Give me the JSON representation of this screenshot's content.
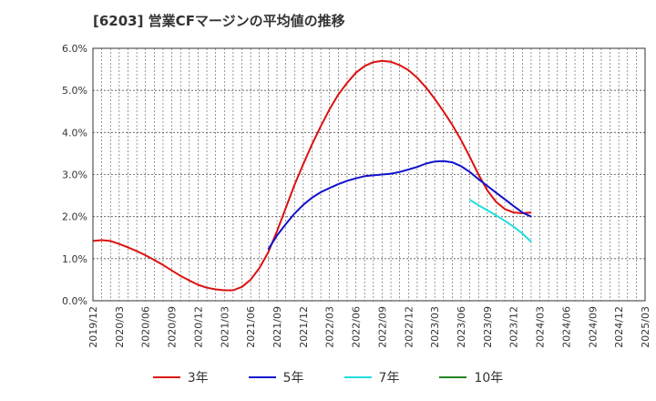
{
  "title": "[6203]  営業CFマージンの平均値の推移",
  "chart_data": {
    "type": "line",
    "title": "[6203]  営業CFマージンの平均値の推移",
    "xlabel": "",
    "ylabel": "",
    "ylim": [
      0,
      6
    ],
    "y_ticks": [
      "0.0%",
      "1.0%",
      "2.0%",
      "3.0%",
      "4.0%",
      "5.0%",
      "6.0%"
    ],
    "x_ticks": [
      "2019/12",
      "2020/03",
      "2020/06",
      "2020/09",
      "2020/12",
      "2021/03",
      "2021/06",
      "2021/09",
      "2021/12",
      "2022/03",
      "2022/06",
      "2022/09",
      "2022/12",
      "2023/03",
      "2023/06",
      "2023/09",
      "2023/12",
      "2024/03",
      "2024/06",
      "2024/09",
      "2024/12",
      "2025/03"
    ],
    "x_start": "2019/12",
    "grid": true,
    "legend_position": "bottom",
    "series": [
      {
        "name": "3年",
        "color": "#dd1111",
        "points": [
          [
            "2019/12",
            1.42
          ],
          [
            "2020/01",
            1.44
          ],
          [
            "2020/02",
            1.42
          ],
          [
            "2020/03",
            1.35
          ],
          [
            "2020/04",
            1.27
          ],
          [
            "2020/05",
            1.18
          ],
          [
            "2020/06",
            1.08
          ],
          [
            "2020/07",
            0.97
          ],
          [
            "2020/08",
            0.85
          ],
          [
            "2020/09",
            0.72
          ],
          [
            "2020/10",
            0.59
          ],
          [
            "2020/11",
            0.48
          ],
          [
            "2020/12",
            0.38
          ],
          [
            "2021/01",
            0.31
          ],
          [
            "2021/02",
            0.27
          ],
          [
            "2021/03",
            0.25
          ],
          [
            "2021/04",
            0.25
          ],
          [
            "2021/05",
            0.33
          ],
          [
            "2021/06",
            0.5
          ],
          [
            "2021/07",
            0.78
          ],
          [
            "2021/08",
            1.15
          ],
          [
            "2021/09",
            1.65
          ],
          [
            "2021/10",
            2.2
          ],
          [
            "2021/11",
            2.75
          ],
          [
            "2021/12",
            3.25
          ],
          [
            "2022/01",
            3.72
          ],
          [
            "2022/02",
            4.15
          ],
          [
            "2022/03",
            4.55
          ],
          [
            "2022/04",
            4.9
          ],
          [
            "2022/05",
            5.18
          ],
          [
            "2022/06",
            5.42
          ],
          [
            "2022/07",
            5.58
          ],
          [
            "2022/08",
            5.67
          ],
          [
            "2022/09",
            5.7
          ],
          [
            "2022/10",
            5.68
          ],
          [
            "2022/11",
            5.6
          ],
          [
            "2022/12",
            5.48
          ],
          [
            "2023/01",
            5.3
          ],
          [
            "2023/02",
            5.07
          ],
          [
            "2023/03",
            4.8
          ],
          [
            "2023/04",
            4.5
          ],
          [
            "2023/05",
            4.18
          ],
          [
            "2023/06",
            3.82
          ],
          [
            "2023/07",
            3.42
          ],
          [
            "2023/08",
            3.0
          ],
          [
            "2023/09",
            2.62
          ],
          [
            "2023/10",
            2.35
          ],
          [
            "2023/11",
            2.18
          ],
          [
            "2023/12",
            2.1
          ],
          [
            "2024/01",
            2.08
          ],
          [
            "2024/02",
            2.1
          ]
        ]
      },
      {
        "name": "5年",
        "color": "#1111cc",
        "points": [
          [
            "2021/08",
            1.22
          ],
          [
            "2021/09",
            1.55
          ],
          [
            "2021/10",
            1.82
          ],
          [
            "2021/11",
            2.07
          ],
          [
            "2021/12",
            2.28
          ],
          [
            "2022/01",
            2.45
          ],
          [
            "2022/02",
            2.58
          ],
          [
            "2022/03",
            2.68
          ],
          [
            "2022/04",
            2.77
          ],
          [
            "2022/05",
            2.85
          ],
          [
            "2022/06",
            2.91
          ],
          [
            "2022/07",
            2.96
          ],
          [
            "2022/08",
            2.98
          ],
          [
            "2022/09",
            3.0
          ],
          [
            "2022/10",
            3.02
          ],
          [
            "2022/11",
            3.06
          ],
          [
            "2022/12",
            3.12
          ],
          [
            "2023/01",
            3.18
          ],
          [
            "2023/02",
            3.26
          ],
          [
            "2023/03",
            3.31
          ],
          [
            "2023/04",
            3.32
          ],
          [
            "2023/05",
            3.29
          ],
          [
            "2023/06",
            3.2
          ],
          [
            "2023/07",
            3.06
          ],
          [
            "2023/08",
            2.89
          ],
          [
            "2023/09",
            2.73
          ],
          [
            "2023/10",
            2.57
          ],
          [
            "2023/11",
            2.41
          ],
          [
            "2023/12",
            2.25
          ],
          [
            "2024/01",
            2.1
          ],
          [
            "2024/02",
            2.0
          ]
        ]
      },
      {
        "name": "7年",
        "color": "#22dddd",
        "points": [
          [
            "2023/07",
            2.4
          ],
          [
            "2023/08",
            2.27
          ],
          [
            "2023/09",
            2.15
          ],
          [
            "2023/10",
            2.03
          ],
          [
            "2023/11",
            1.9
          ],
          [
            "2023/12",
            1.76
          ],
          [
            "2024/01",
            1.6
          ],
          [
            "2024/02",
            1.4
          ]
        ]
      },
      {
        "name": "10年",
        "color": "#228822",
        "points": []
      }
    ]
  }
}
